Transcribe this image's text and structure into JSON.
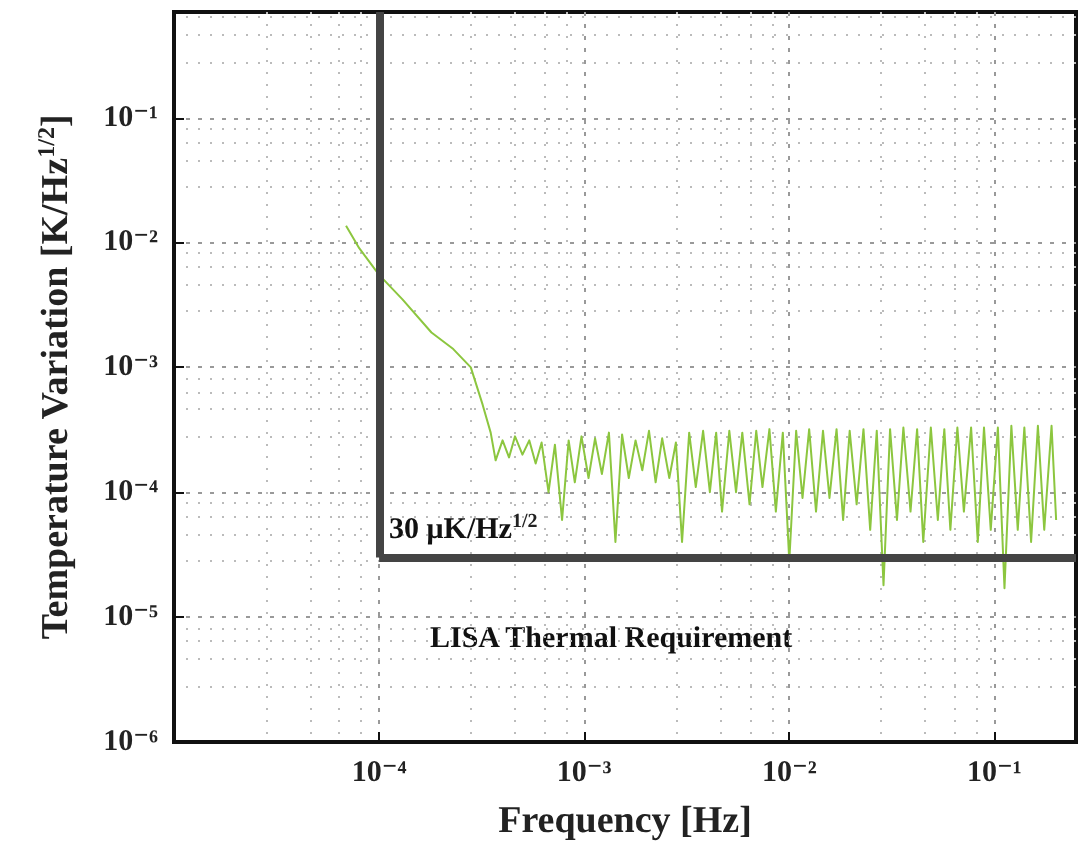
{
  "chart_data": {
    "type": "line",
    "xlabel": "Frequency [Hz]",
    "ylabel": "Temperature Variation [K/Hz$^{1/2}$]",
    "log": "xy",
    "grid": true,
    "marker": "none",
    "line_style": "solid",
    "xlim": [
      1e-05,
      0.25
    ],
    "ylim": [
      1e-06,
      0.7
    ],
    "xticks": [
      {
        "value": 0.0001,
        "label": "10⁻⁴"
      },
      {
        "value": 0.001,
        "label": "10⁻³"
      },
      {
        "value": 0.01,
        "label": "10⁻²"
      },
      {
        "value": 0.1,
        "label": "10⁻¹"
      }
    ],
    "yticks": [
      {
        "value": 1e-06,
        "label": "10⁻⁶"
      },
      {
        "value": 1e-05,
        "label": "10⁻⁵"
      },
      {
        "value": 0.0001,
        "label": "10⁻⁴"
      },
      {
        "value": 0.001,
        "label": "10⁻³"
      },
      {
        "value": 0.01,
        "label": "10⁻²"
      },
      {
        "value": 0.1,
        "label": "10⁻¹"
      }
    ],
    "ref_lines": [
      {
        "axis": "x",
        "value": 0.0001,
        "color": "#444444"
      },
      {
        "axis": "y",
        "value": 3e-05,
        "label": "30 μK/Hz$^{1/2}$",
        "color": "#444444"
      }
    ],
    "annotations": [
      "LISA Thermal Requirement"
    ],
    "series": [
      {
        "color": "#8cc63f",
        "x": [
          6.9e-05,
          8e-05,
          0.0001,
          0.00013,
          0.00018,
          0.00023,
          0.00028,
          0.00032,
          0.00035,
          0.00037,
          0.0004,
          0.00043,
          0.00046,
          0.0005,
          0.00054,
          0.00058,
          0.00062,
          0.00067,
          0.00072,
          0.00078,
          0.00084,
          0.0009,
          0.00097,
          0.00105,
          0.00113,
          0.00122,
          0.00132,
          0.00142,
          0.00153,
          0.00165,
          0.00178,
          0.00192,
          0.00207,
          0.00223,
          0.0024,
          0.0026,
          0.0028,
          0.003,
          0.00325,
          0.0035,
          0.0038,
          0.0041,
          0.0044,
          0.0047,
          0.0051,
          0.0055,
          0.0059,
          0.0064,
          0.0069,
          0.0074,
          0.008,
          0.0086,
          0.0093,
          0.01,
          0.0108,
          0.0116,
          0.0125,
          0.0135,
          0.0146,
          0.0157,
          0.017,
          0.0183,
          0.0197,
          0.0213,
          0.023,
          0.0248,
          0.0267,
          0.0288,
          0.031,
          0.0335,
          0.036,
          0.039,
          0.042,
          0.045,
          0.049,
          0.053,
          0.057,
          0.061,
          0.066,
          0.071,
          0.077,
          0.083,
          0.089,
          0.096,
          0.104,
          0.112,
          0.121,
          0.13,
          0.14,
          0.151,
          0.163,
          0.175,
          0.19,
          0.2
        ],
        "values": [
          0.0136,
          0.009,
          0.0055,
          0.0035,
          0.0019,
          0.0014,
          0.001,
          0.0005,
          0.0003,
          0.00018,
          0.00026,
          0.00019,
          0.00028,
          0.0002,
          0.00026,
          0.00017,
          0.00025,
          0.0001,
          0.00024,
          6e-05,
          0.00026,
          0.00012,
          0.00028,
          0.00013,
          0.00027,
          0.00014,
          0.0003,
          4e-05,
          0.00029,
          0.00013,
          0.00026,
          0.00015,
          0.00031,
          0.00012,
          0.00027,
          0.00013,
          0.00025,
          4e-05,
          0.0003,
          0.00011,
          0.00031,
          0.0001,
          0.0003,
          7e-05,
          0.00031,
          0.0001,
          0.0003,
          8e-05,
          0.00031,
          0.00011,
          0.00032,
          7e-05,
          0.0003,
          2.8e-05,
          0.00031,
          9e-05,
          0.00032,
          7e-05,
          0.00031,
          9e-05,
          0.00032,
          6e-05,
          0.00031,
          8e-05,
          0.00032,
          5e-05,
          0.00031,
          1.8e-05,
          0.00032,
          6e-05,
          0.00033,
          7e-05,
          0.00032,
          4e-05,
          0.00033,
          6e-05,
          0.00032,
          5e-05,
          0.00033,
          7e-05,
          0.00033,
          4e-05,
          0.00033,
          5e-05,
          0.00033,
          1.7e-05,
          0.00034,
          5e-05,
          0.00033,
          4e-05,
          0.00034,
          5e-05,
          0.00034,
          6e-05
        ]
      }
    ]
  }
}
